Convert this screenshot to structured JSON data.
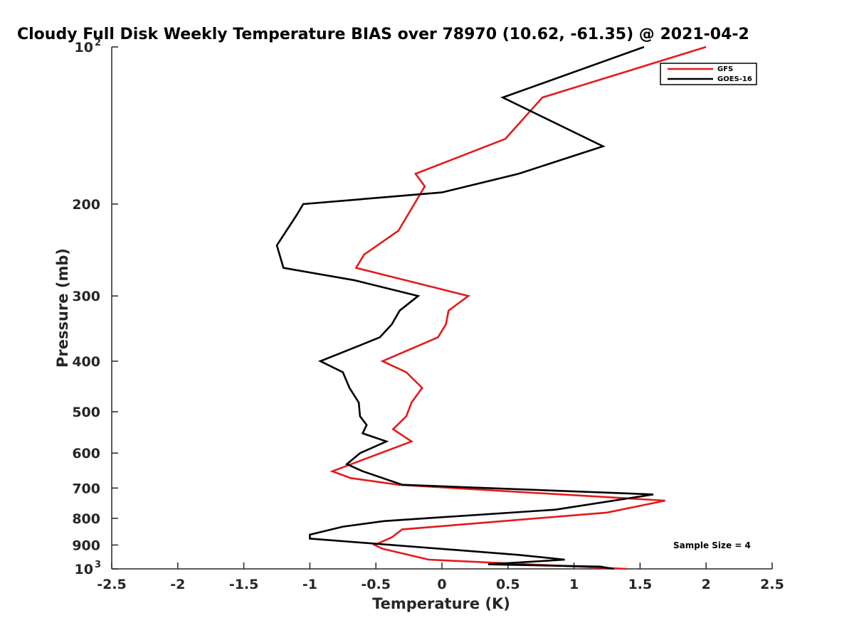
{
  "chart_data": {
    "type": "line",
    "title": "Cloudy Full Disk Weekly Temperature BIAS over 78970 (10.62, -61.35) @ 2021-04-2",
    "xlabel": "Temperature (K)",
    "ylabel": "Pressure (mb)",
    "xlim": [
      -2.5,
      2.5
    ],
    "ylim": [
      100,
      1000
    ],
    "y_scale": "log",
    "y_reversed": true,
    "grid": false,
    "legend_position": "top-right",
    "x_ticks": [
      "-2.5",
      "-2",
      "-1.5",
      "-1",
      "-0.5",
      "0",
      "0.5",
      "1",
      "1.5",
      "2",
      "2.5"
    ],
    "x_tick_values": [
      -2.5,
      -2,
      -1.5,
      -1,
      -0.5,
      0,
      0.5,
      1,
      1.5,
      2,
      2.5
    ],
    "y_tick_values": [
      100,
      200,
      300,
      400,
      500,
      600,
      700,
      800,
      900,
      1000
    ],
    "y_ticks": [
      {
        "base": "10",
        "exp": "2"
      },
      {
        "base": "200",
        "exp": ""
      },
      {
        "base": "300",
        "exp": ""
      },
      {
        "base": "400",
        "exp": ""
      },
      {
        "base": "500",
        "exp": ""
      },
      {
        "base": "600",
        "exp": ""
      },
      {
        "base": "700",
        "exp": ""
      },
      {
        "base": "800",
        "exp": ""
      },
      {
        "base": "900",
        "exp": ""
      },
      {
        "base": "10",
        "exp": "3"
      }
    ],
    "annotation": "Sample Size = 4",
    "series": [
      {
        "name": "GFS",
        "color": "#e41a1a",
        "points": [
          [
            2.0,
            100
          ],
          [
            0.76,
            125
          ],
          [
            0.48,
            150
          ],
          [
            -0.2,
            175
          ],
          [
            -0.13,
            185
          ],
          [
            -0.33,
            225
          ],
          [
            -0.59,
            250
          ],
          [
            -0.65,
            265
          ],
          [
            0.2,
            300
          ],
          [
            0.05,
            320
          ],
          [
            0.03,
            340
          ],
          [
            -0.03,
            360
          ],
          [
            -0.45,
            400
          ],
          [
            -0.27,
            420
          ],
          [
            -0.15,
            450
          ],
          [
            -0.23,
            480
          ],
          [
            -0.27,
            510
          ],
          [
            -0.37,
            540
          ],
          [
            -0.23,
            570
          ],
          [
            -0.83,
            650
          ],
          [
            -0.69,
            670
          ],
          [
            -0.33,
            690
          ],
          [
            1.69,
            740
          ],
          [
            1.25,
            780
          ],
          [
            0.21,
            820
          ],
          [
            -0.3,
            840
          ],
          [
            -0.38,
            870
          ],
          [
            -0.51,
            900
          ],
          [
            -0.45,
            915
          ],
          [
            -0.1,
            960
          ],
          [
            1.4,
            1000
          ]
        ]
      },
      {
        "name": "GOES-16",
        "color": "#000000",
        "points": [
          [
            1.53,
            100
          ],
          [
            0.46,
            125
          ],
          [
            1.22,
            155
          ],
          [
            0.58,
            175
          ],
          [
            0.0,
            190
          ],
          [
            -1.05,
            200
          ],
          [
            -1.1,
            210
          ],
          [
            -1.25,
            240
          ],
          [
            -1.2,
            265
          ],
          [
            -0.66,
            280
          ],
          [
            -0.18,
            300
          ],
          [
            -0.32,
            320
          ],
          [
            -0.38,
            340
          ],
          [
            -0.47,
            360
          ],
          [
            -0.7,
            380
          ],
          [
            -0.92,
            400
          ],
          [
            -0.75,
            420
          ],
          [
            -0.7,
            450
          ],
          [
            -0.63,
            480
          ],
          [
            -0.62,
            510
          ],
          [
            -0.57,
            530
          ],
          [
            -0.6,
            550
          ],
          [
            -0.42,
            570
          ],
          [
            -0.62,
            600
          ],
          [
            -0.72,
            630
          ],
          [
            -0.6,
            650
          ],
          [
            -0.3,
            690
          ],
          [
            1.6,
            720
          ],
          [
            0.86,
            770
          ],
          [
            -0.44,
            810
          ],
          [
            -0.75,
            830
          ],
          [
            -1.0,
            860
          ],
          [
            -1.0,
            875
          ],
          [
            0.58,
            940
          ],
          [
            0.93,
            960
          ],
          [
            0.35,
            980
          ],
          [
            1.2,
            990
          ],
          [
            1.3,
            1000
          ]
        ]
      }
    ]
  }
}
